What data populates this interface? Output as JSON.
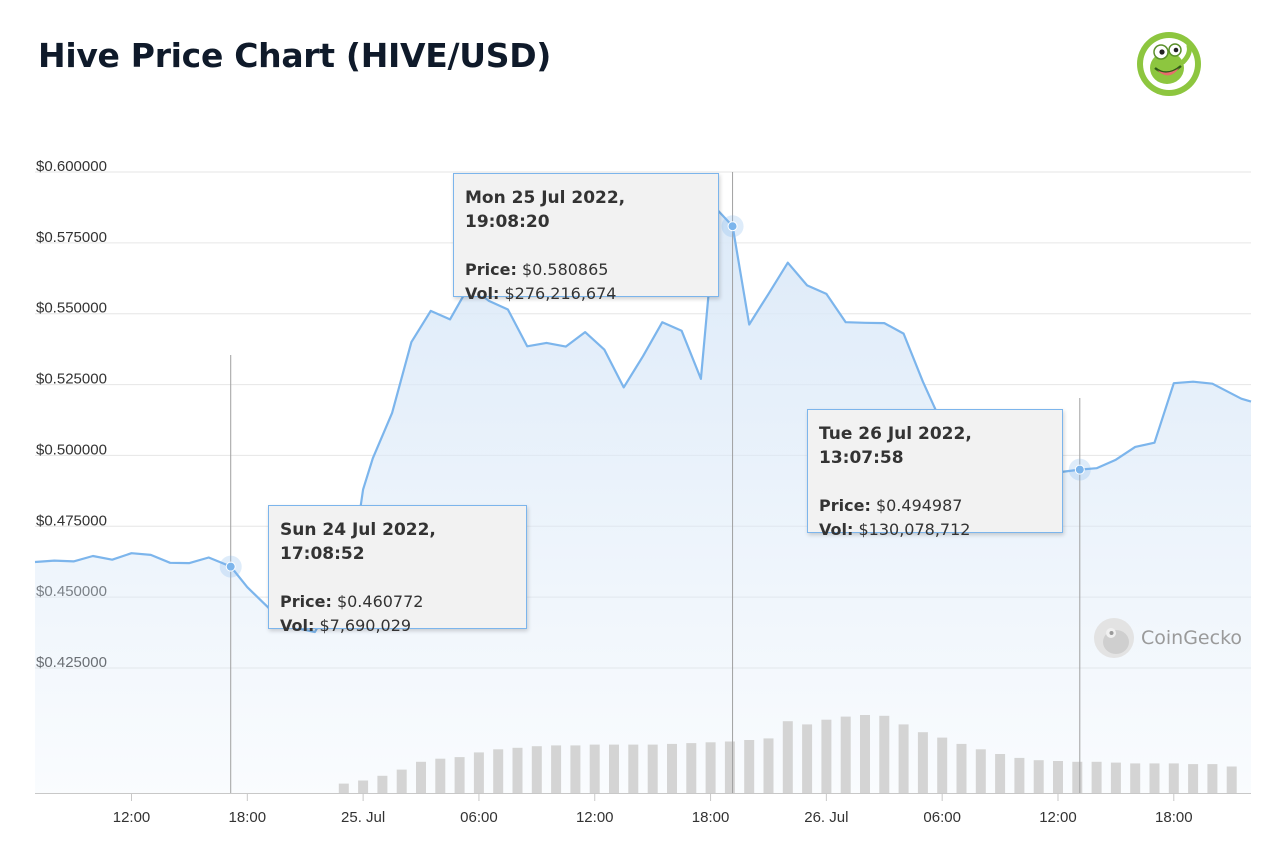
{
  "page": {
    "title": "Hive Price Chart (HIVE/USD)",
    "logo_icon": "coingecko-gecko-logo",
    "watermark": "CoinGecko"
  },
  "colors": {
    "line": "#7cb5ec",
    "area_top": "#dbe9f8",
    "volume_bar": "#d4d4d4",
    "grid": "#e6e6e6",
    "logo_green": "#8dc63f"
  },
  "tooltips": [
    {
      "date": "Sun 24 Jul 2022, 17:08:52",
      "price_label": "Price:",
      "price": "$0.460772",
      "vol_label": "Vol:",
      "vol": "$7,690,029"
    },
    {
      "date": "Mon 25 Jul 2022, 19:08:20",
      "price_label": "Price:",
      "price": "$0.580865",
      "vol_label": "Vol:",
      "vol": "$276,216,674"
    },
    {
      "date": "Tue 26 Jul 2022, 13:07:58",
      "price_label": "Price:",
      "price": "$0.494987",
      "vol_label": "Vol:",
      "vol": "$130,078,712"
    }
  ],
  "chart_data": {
    "type": "line",
    "title": "Hive Price Chart (HIVE/USD)",
    "xlabel": "",
    "ylabel": "",
    "x_unit": "hours since 24 Jul 00:00",
    "xlim": [
      7.0,
      70.0
    ],
    "ylim": [
      0.425,
      0.6
    ],
    "y_ticks": [
      {
        "value": 0.6,
        "label": "$0.600000"
      },
      {
        "value": 0.575,
        "label": "$0.575000"
      },
      {
        "value": 0.55,
        "label": "$0.550000"
      },
      {
        "value": 0.525,
        "label": "$0.525000"
      },
      {
        "value": 0.5,
        "label": "$0.500000"
      },
      {
        "value": 0.475,
        "label": "$0.475000"
      },
      {
        "value": 0.45,
        "label": "$0.450000"
      },
      {
        "value": 0.425,
        "label": "$0.425000"
      }
    ],
    "x_ticks": [
      {
        "value": 12,
        "label": "12:00"
      },
      {
        "value": 18,
        "label": "18:00"
      },
      {
        "value": 24,
        "label": "25. Jul"
      },
      {
        "value": 30,
        "label": "06:00"
      },
      {
        "value": 36,
        "label": "12:00"
      },
      {
        "value": 42,
        "label": "18:00"
      },
      {
        "value": 48,
        "label": "26. Jul"
      },
      {
        "value": 54,
        "label": "06:00"
      },
      {
        "value": 60,
        "label": "12:00"
      },
      {
        "value": 66,
        "label": "18:00"
      }
    ],
    "grid": true,
    "series": [
      {
        "name": "Price",
        "points": [
          [
            7.0,
            0.4624
          ],
          [
            8.0,
            0.4629
          ],
          [
            9.0,
            0.4626
          ],
          [
            10.0,
            0.4645
          ],
          [
            11.0,
            0.4632
          ],
          [
            12.0,
            0.4655
          ],
          [
            13.0,
            0.4649
          ],
          [
            14.0,
            0.4621
          ],
          [
            15.0,
            0.462
          ],
          [
            16.0,
            0.464
          ],
          [
            17.14,
            0.4608
          ],
          [
            18.0,
            0.4535
          ],
          [
            19.0,
            0.4469
          ],
          [
            20.0,
            0.4399
          ],
          [
            21.5,
            0.4377
          ],
          [
            23.0,
            0.456
          ],
          [
            23.7,
            0.474
          ],
          [
            24.0,
            0.488
          ],
          [
            24.5,
            0.499
          ],
          [
            25.5,
            0.515
          ],
          [
            26.5,
            0.54
          ],
          [
            27.5,
            0.551
          ],
          [
            28.5,
            0.548
          ],
          [
            29.5,
            0.56
          ],
          [
            30.5,
            0.5546
          ],
          [
            31.5,
            0.5515
          ],
          [
            32.5,
            0.5385
          ],
          [
            33.5,
            0.5397
          ],
          [
            34.5,
            0.5384
          ],
          [
            35.5,
            0.5435
          ],
          [
            36.5,
            0.5373
          ],
          [
            37.5,
            0.524
          ],
          [
            38.5,
            0.535
          ],
          [
            39.5,
            0.547
          ],
          [
            40.5,
            0.544
          ],
          [
            41.5,
            0.527
          ],
          [
            42.3,
            0.587
          ],
          [
            43.14,
            0.5809
          ],
          [
            44.0,
            0.5462
          ],
          [
            45.0,
            0.557
          ],
          [
            46.0,
            0.568
          ],
          [
            47.0,
            0.56
          ],
          [
            48.0,
            0.557
          ],
          [
            49.0,
            0.547
          ],
          [
            50.0,
            0.5468
          ],
          [
            51.0,
            0.5467
          ],
          [
            52.0,
            0.543
          ],
          [
            53.0,
            0.526
          ],
          [
            54.0,
            0.511
          ],
          [
            55.0,
            0.502
          ],
          [
            56.0,
            0.497
          ],
          [
            57.0,
            0.4995
          ],
          [
            58.0,
            0.498
          ],
          [
            59.0,
            0.495
          ],
          [
            60.0,
            0.494
          ],
          [
            61.13,
            0.495
          ],
          [
            62.0,
            0.4955
          ],
          [
            63.0,
            0.4985
          ],
          [
            64.0,
            0.503
          ],
          [
            65.0,
            0.5045
          ],
          [
            66.0,
            0.5255
          ],
          [
            67.0,
            0.526
          ],
          [
            68.0,
            0.5253
          ],
          [
            69.5,
            0.52
          ],
          [
            70.0,
            0.519
          ]
        ],
        "highlighted_points": [
          [
            17.14,
            0.460772
          ],
          [
            43.14,
            0.580865
          ],
          [
            61.13,
            0.494987
          ]
        ]
      },
      {
        "name": "Vol",
        "unit": "relative bar height (0-1)",
        "bars": [
          [
            23.0,
            0.12
          ],
          [
            24.0,
            0.16
          ],
          [
            25.0,
            0.22
          ],
          [
            26.0,
            0.3
          ],
          [
            27.0,
            0.4
          ],
          [
            28.0,
            0.44
          ],
          [
            29.0,
            0.46
          ],
          [
            30.0,
            0.52
          ],
          [
            31.0,
            0.56
          ],
          [
            32.0,
            0.58
          ],
          [
            33.0,
            0.6
          ],
          [
            34.0,
            0.61
          ],
          [
            35.0,
            0.61
          ],
          [
            36.0,
            0.62
          ],
          [
            37.0,
            0.62
          ],
          [
            38.0,
            0.62
          ],
          [
            39.0,
            0.62
          ],
          [
            40.0,
            0.63
          ],
          [
            41.0,
            0.64
          ],
          [
            42.0,
            0.65
          ],
          [
            43.0,
            0.66
          ],
          [
            44.0,
            0.68
          ],
          [
            45.0,
            0.7
          ],
          [
            46.0,
            0.92
          ],
          [
            47.0,
            0.88
          ],
          [
            48.0,
            0.94
          ],
          [
            49.0,
            0.98
          ],
          [
            50.0,
            1.0
          ],
          [
            51.0,
            0.99
          ],
          [
            52.0,
            0.88
          ],
          [
            53.0,
            0.78
          ],
          [
            54.0,
            0.71
          ],
          [
            55.0,
            0.63
          ],
          [
            56.0,
            0.56
          ],
          [
            57.0,
            0.5
          ],
          [
            58.0,
            0.45
          ],
          [
            59.0,
            0.42
          ],
          [
            60.0,
            0.41
          ],
          [
            61.0,
            0.4
          ],
          [
            62.0,
            0.4
          ],
          [
            63.0,
            0.39
          ],
          [
            64.0,
            0.38
          ],
          [
            65.0,
            0.38
          ],
          [
            66.0,
            0.38
          ],
          [
            67.0,
            0.37
          ],
          [
            68.0,
            0.37
          ],
          [
            69.0,
            0.34
          ]
        ]
      }
    ],
    "crosshairs": [
      17.14,
      43.14,
      61.13
    ]
  }
}
